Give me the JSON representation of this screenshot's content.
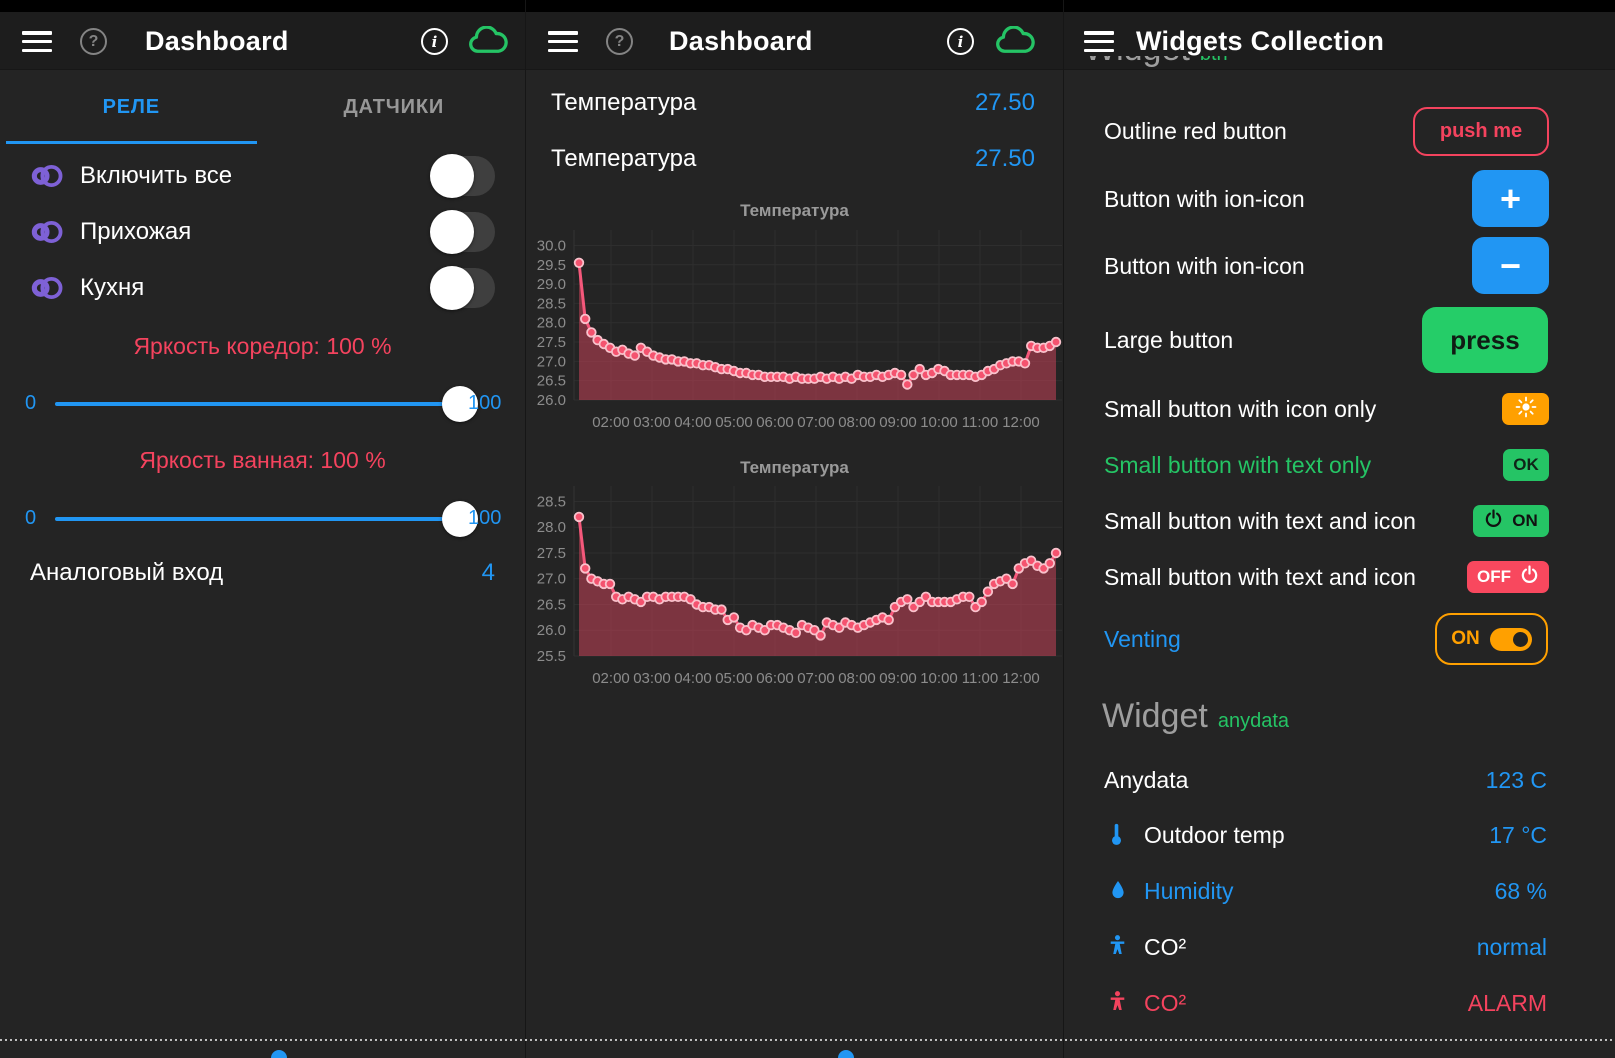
{
  "colors": {
    "accent_blue": "#2196f3",
    "pink_red": "#f4435e",
    "green": "#25c465",
    "orange": "#ffa000",
    "purple": "#7e61d6",
    "chart_line": "#f5587b"
  },
  "panels": {
    "left": {
      "header": {
        "title": "Dashboard"
      },
      "tabs": [
        {
          "label": "РЕЛЕ"
        },
        {
          "label": "ДАТЧИКИ"
        }
      ],
      "switch_rows": [
        {
          "label": "Включить все"
        },
        {
          "label": "Прихожая"
        },
        {
          "label": "Кухня"
        }
      ],
      "sliders": [
        {
          "label": "Яркость коредор: 100 %",
          "min": "0",
          "max": "100"
        },
        {
          "label": "Яркость ванная: 100 %",
          "min": "0",
          "max": "100"
        }
      ],
      "analog_row": {
        "label": "Аналоговый вход",
        "value": "4"
      }
    },
    "middle": {
      "header": {
        "title": "Dashboard"
      },
      "value_rows": [
        {
          "label": "Температура",
          "value": "27.50"
        },
        {
          "label": "Температура",
          "value": "27.50"
        }
      ]
    },
    "right": {
      "header": {
        "title": "Widgets Collection"
      },
      "cropped_section": {
        "title": "Widget",
        "subtitle": "btn"
      },
      "rows": [
        {
          "label": "Outline red button",
          "button": "push me"
        },
        {
          "label": "Button with ion-icon",
          "button": "+"
        },
        {
          "label": "Button with ion-icon",
          "button": "−"
        },
        {
          "label": "Large button",
          "button": "press"
        },
        {
          "label": "Small button with icon only",
          "button": ""
        },
        {
          "label": "Small button with text only",
          "button": "OK"
        },
        {
          "label": "Small button with text and icon",
          "button": "ON"
        },
        {
          "label": "Small button with text and icon",
          "button": "OFF"
        },
        {
          "label": "Venting",
          "button": "ON"
        }
      ],
      "section": {
        "title": "Widget",
        "subtitle": "anydata"
      },
      "data_rows": [
        {
          "label": "Anydata",
          "value": "123 C"
        },
        {
          "label": "Outdoor temp",
          "value": "17 °C"
        },
        {
          "label": "Humidity",
          "value": "68 %"
        },
        {
          "label": "CO²",
          "value": "normal"
        },
        {
          "label": "CO²",
          "value": "ALARM"
        }
      ]
    }
  },
  "chart_data": [
    {
      "type": "line",
      "title": "Температура",
      "legend_position": "none",
      "grid": true,
      "ylim": [
        26.0,
        30.4
      ],
      "yticks": [
        "30.0",
        "29.5",
        "29.0",
        "28.5",
        "28.0",
        "27.5",
        "27.0",
        "26.5",
        "26.0"
      ],
      "xlabels": [
        "02:00",
        "03:00",
        "04:00",
        "05:00",
        "06:00",
        "07:00",
        "08:00",
        "09:00",
        "10:00",
        "11:00",
        "12:00"
      ],
      "values": [
        29.55,
        28.1,
        27.75,
        27.55,
        27.45,
        27.35,
        27.25,
        27.3,
        27.2,
        27.15,
        27.35,
        27.25,
        27.15,
        27.1,
        27.05,
        27.05,
        27.0,
        27.0,
        26.95,
        26.95,
        26.9,
        26.9,
        26.85,
        26.8,
        26.8,
        26.75,
        26.7,
        26.7,
        26.65,
        26.65,
        26.6,
        26.6,
        26.6,
        26.6,
        26.55,
        26.6,
        26.55,
        26.55,
        26.55,
        26.6,
        26.55,
        26.6,
        26.55,
        26.6,
        26.55,
        26.65,
        26.6,
        26.6,
        26.65,
        26.6,
        26.65,
        26.7,
        26.65,
        26.4,
        26.65,
        26.8,
        26.65,
        26.7,
        26.8,
        26.75,
        26.65,
        26.65,
        26.65,
        26.65,
        26.6,
        26.65,
        26.75,
        26.8,
        26.9,
        26.95,
        27.0,
        27.0,
        26.95,
        27.4,
        27.35,
        27.35,
        27.4,
        27.5
      ]
    },
    {
      "type": "line",
      "title": "Температура",
      "legend_position": "none",
      "grid": true,
      "ylim": [
        25.5,
        28.8
      ],
      "yticks": [
        "28.5",
        "28.0",
        "27.5",
        "27.0",
        "26.5",
        "26.0",
        "25.5"
      ],
      "xlabels": [
        "02:00",
        "03:00",
        "04:00",
        "05:00",
        "06:00",
        "07:00",
        "08:00",
        "09:00",
        "10:00",
        "11:00",
        "12:00"
      ],
      "values": [
        28.2,
        27.2,
        27.0,
        26.95,
        26.9,
        26.9,
        26.65,
        26.6,
        26.65,
        26.6,
        26.55,
        26.65,
        26.65,
        26.6,
        26.65,
        26.65,
        26.65,
        26.65,
        26.6,
        26.5,
        26.45,
        26.45,
        26.4,
        26.4,
        26.2,
        26.25,
        26.05,
        26.0,
        26.1,
        26.05,
        26.0,
        26.1,
        26.1,
        26.05,
        26.0,
        25.95,
        26.1,
        26.05,
        26.0,
        25.9,
        26.15,
        26.1,
        26.05,
        26.15,
        26.1,
        26.05,
        26.1,
        26.15,
        26.2,
        26.25,
        26.2,
        26.45,
        26.55,
        26.6,
        26.45,
        26.55,
        26.65,
        26.55,
        26.55,
        26.55,
        26.55,
        26.6,
        26.65,
        26.65,
        26.45,
        26.55,
        26.75,
        26.9,
        26.95,
        27.0,
        26.9,
        27.2,
        27.3,
        27.35,
        27.25,
        27.2,
        27.3,
        27.5
      ]
    }
  ]
}
